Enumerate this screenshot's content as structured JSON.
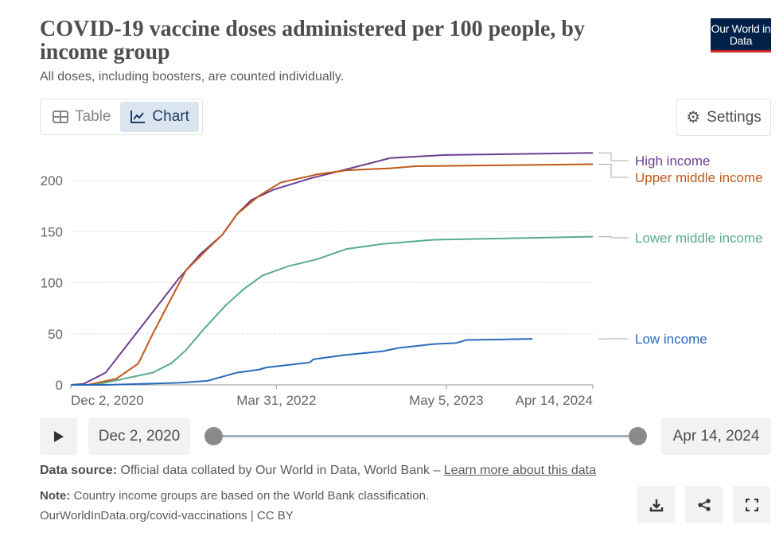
{
  "header": {
    "title": "COVID-19 vaccine doses administered per 100 people, by income group",
    "subtitle": "All doses, including boosters, are counted individually.",
    "logo": "Our World in Data"
  },
  "tabs": [
    {
      "label": "Table",
      "icon": "table-icon"
    },
    {
      "label": "Chart",
      "icon": "line-chart-icon"
    }
  ],
  "settings_label": "Settings",
  "chart_data": {
    "type": "line",
    "title": "COVID-19 vaccine doses administered per 100 people, by income group",
    "x_unit": "days since Dec 2, 2020",
    "xlim": [
      0,
      1229
    ],
    "ylim": [
      0,
      227
    ],
    "yticks": [
      0,
      50,
      100,
      150,
      200
    ],
    "xticks": [
      {
        "day": 0,
        "label": "Dec 2, 2020"
      },
      {
        "day": 484,
        "label": "Mar 31, 2022"
      },
      {
        "day": 884,
        "label": "May 5, 2023"
      },
      {
        "day": 1229,
        "label": "Apr 14, 2024"
      }
    ],
    "grid": "horizontal dotted",
    "legend": "right, inline labels",
    "series": [
      {
        "name": "High income",
        "color": "#6d3e91",
        "points": [
          [
            0,
            0
          ],
          [
            30,
            1
          ],
          [
            82,
            12
          ],
          [
            168,
            58
          ],
          [
            254,
            104
          ],
          [
            305,
            128
          ],
          [
            357,
            147
          ],
          [
            391,
            167
          ],
          [
            425,
            181
          ],
          [
            477,
            191
          ],
          [
            563,
            202
          ],
          [
            640,
            210
          ],
          [
            752,
            222
          ],
          [
            881,
            225
          ],
          [
            1229,
            227
          ]
        ]
      },
      {
        "name": "Upper middle income",
        "color": "#c05917",
        "points": [
          [
            0,
            0
          ],
          [
            39,
            0
          ],
          [
            107,
            6
          ],
          [
            159,
            21
          ],
          [
            193,
            50
          ],
          [
            228,
            78
          ],
          [
            271,
            112
          ],
          [
            322,
            133
          ],
          [
            357,
            147
          ],
          [
            391,
            167
          ],
          [
            443,
            185
          ],
          [
            494,
            198
          ],
          [
            580,
            206
          ],
          [
            649,
            210
          ],
          [
            752,
            212
          ],
          [
            812,
            214
          ],
          [
            1229,
            216
          ]
        ]
      },
      {
        "name": "Lower middle income",
        "color": "#58ac8c",
        "points": [
          [
            0,
            0
          ],
          [
            56,
            0
          ],
          [
            125,
            6
          ],
          [
            193,
            12
          ],
          [
            236,
            21
          ],
          [
            271,
            34
          ],
          [
            314,
            55
          ],
          [
            365,
            78
          ],
          [
            408,
            94
          ],
          [
            451,
            107
          ],
          [
            511,
            116
          ],
          [
            580,
            123
          ],
          [
            649,
            133
          ],
          [
            735,
            138
          ],
          [
            855,
            142
          ],
          [
            1229,
            145
          ]
        ]
      },
      {
        "name": "Low income",
        "color": "#286bbb",
        "points": [
          [
            0,
            0
          ],
          [
            82,
            0
          ],
          [
            254,
            2
          ],
          [
            322,
            4
          ],
          [
            391,
            12
          ],
          [
            443,
            15
          ],
          [
            460,
            17
          ],
          [
            563,
            22
          ],
          [
            571,
            25
          ],
          [
            640,
            29
          ],
          [
            735,
            33
          ],
          [
            769,
            36
          ],
          [
            855,
            40
          ],
          [
            907,
            41
          ],
          [
            932,
            44
          ],
          [
            1087,
            45
          ]
        ]
      }
    ]
  },
  "timeline": {
    "start": "Dec 2, 2020",
    "end": "Apr 14, 2024"
  },
  "footer": {
    "source_label": "Data source:",
    "source_text": " Official data collated by Our World in Data, World Bank – ",
    "learn_more": "Learn more about this data",
    "note_label": "Note:",
    "note_text": " Country income groups are based on the World Bank classification.",
    "credit": "OurWorldInData.org/covid-vaccinations | CC BY"
  }
}
